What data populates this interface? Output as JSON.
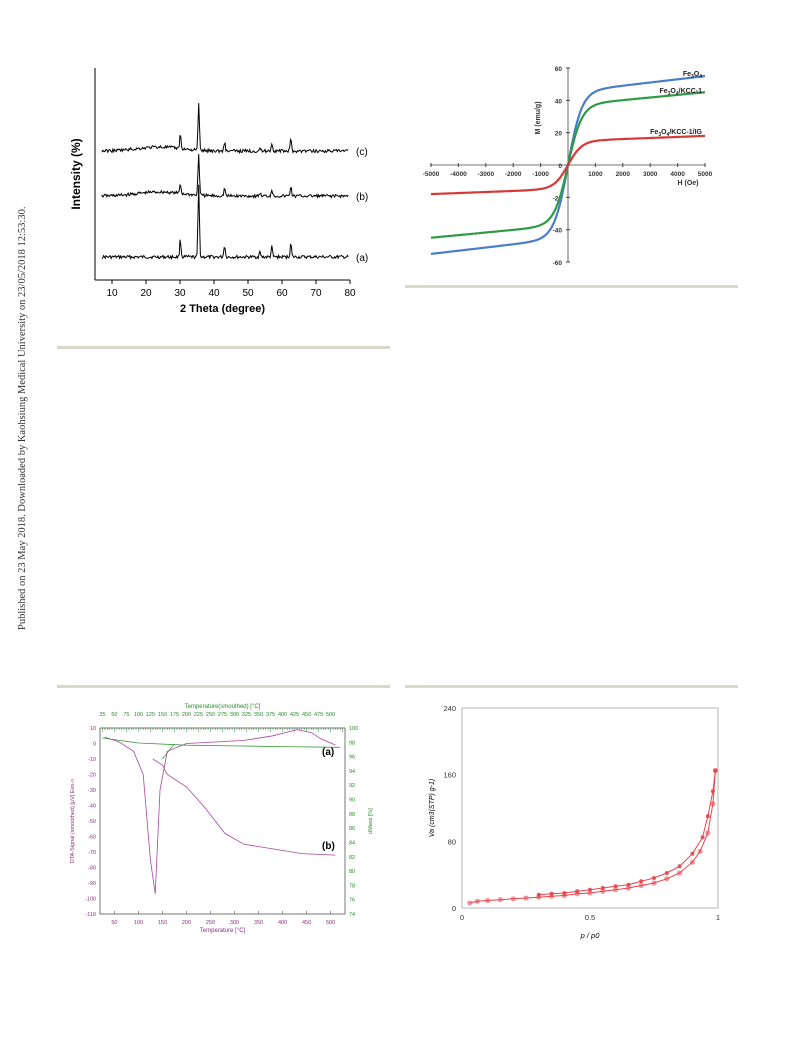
{
  "page": {
    "side_note": "Published on 23 May 2018. Downloaded by Kaohsiung Medical University on 23/05/2018 12:53:30."
  },
  "chart_data": [
    {
      "type": "line",
      "id": "xrd",
      "xlabel": "2 Theta (degree)",
      "ylabel": "Intensity (%)",
      "xlim": [
        5,
        80
      ],
      "x_ticks": [
        10,
        20,
        30,
        40,
        50,
        60,
        70,
        80
      ],
      "peaks": [
        30.1,
        35.5,
        43.1,
        53.5,
        57.0,
        62.6
      ],
      "series": [
        {
          "name": "(a)",
          "peak_heights": [
            18,
            72,
            12,
            5,
            10,
            14
          ]
        },
        {
          "name": "(b)",
          "peak_heights": [
            10,
            42,
            8,
            3,
            7,
            10
          ]
        },
        {
          "name": "(c)",
          "peak_heights": [
            14,
            46,
            9,
            3,
            8,
            12
          ]
        }
      ],
      "color": "#000000"
    },
    {
      "type": "line",
      "id": "vsm",
      "xlabel": "H (Oe)",
      "ylabel": "M (emu/g)",
      "xlim": [
        -5000,
        5000
      ],
      "ylim": [
        -60,
        60
      ],
      "x_ticks": [
        -5000,
        -4000,
        -3000,
        -2000,
        -1000,
        0,
        1000,
        2000,
        3000,
        4000,
        5000
      ],
      "x_tick_labels": [
        "-5000",
        "-4000",
        "-3000",
        "-2000",
        "-1000",
        "0",
        "1000",
        "2000",
        "3000",
        "4000",
        "5000"
      ],
      "y_ticks": [
        -60,
        -40,
        -20,
        0,
        20,
        40,
        60
      ],
      "series": [
        {
          "name": "Fe3O4",
          "saturation": 55,
          "color": "#4a7dc9"
        },
        {
          "name": "Fe3O4/KCC-1",
          "saturation": 45,
          "color": "#2f9a45"
        },
        {
          "name": "Fe3O4/KCC-1/IG",
          "saturation": 18,
          "color": "#d43a3a"
        }
      ]
    },
    {
      "type": "line",
      "id": "dta-tga",
      "top_axis_label": "Temperature(smoothed) [°C]",
      "top_ticks": [
        25,
        50,
        75,
        100,
        125,
        150,
        175,
        200,
        225,
        250,
        275,
        300,
        325,
        350,
        375,
        400,
        425,
        450,
        475,
        500
      ],
      "xlabel": "Temperature [°C]",
      "x_ticks": [
        50,
        100,
        150,
        200,
        250,
        300,
        350,
        400,
        450,
        500
      ],
      "ylabel_left": "DTA-Signal (smoothed) [µV] Exo->",
      "left_ticks": [
        10,
        0,
        -10,
        -20,
        -30,
        -40,
        -50,
        -60,
        -70,
        -80,
        -90,
        -100,
        -110
      ],
      "ylabel_right": "dMass [%]",
      "right_ticks": [
        100,
        98,
        96,
        94,
        92,
        90,
        88,
        86,
        84,
        82,
        80,
        78,
        76,
        74
      ],
      "labels": [
        "(a)",
        "(b)"
      ],
      "colors": {
        "dta": "#a8479c",
        "tga": "#3a9a3a",
        "axis_green": "#2a8a2a",
        "axis_purple": "#8b2f86"
      },
      "series": [
        {
          "name": "(a)",
          "type": "DTA",
          "x": [
            30,
            60,
            90,
            110,
            125,
            135,
            145,
            160,
            200,
            260,
            320,
            380,
            430,
            460,
            480,
            510
          ],
          "y": [
            4,
            1,
            -5,
            -20,
            -75,
            -97,
            -30,
            -5,
            0,
            1,
            2,
            5,
            9,
            7,
            3,
            -1
          ]
        },
        {
          "name": "(b)",
          "type": "DTA",
          "x": [
            130,
            150,
            160,
            200,
            240,
            280,
            320,
            380,
            440,
            510
          ],
          "y": [
            -10,
            -14,
            -20,
            -28,
            -42,
            -58,
            -65,
            -68,
            -71,
            -72
          ]
        },
        {
          "name": "(a)",
          "type": "TG",
          "x": [
            25,
            100,
            200,
            300,
            400,
            520
          ],
          "y": [
            98.6,
            97.9,
            97.6,
            97.5,
            97.4,
            97.3
          ]
        }
      ]
    },
    {
      "type": "scatter",
      "id": "bet",
      "xlabel": "p / p0",
      "ylabel": "Va (cm3(STP) g-1)",
      "xlim": [
        0,
        1
      ],
      "ylim": [
        0,
        240
      ],
      "x_ticks": [
        0,
        0.5,
        1
      ],
      "y_ticks": [
        0,
        80,
        160,
        240
      ],
      "color": "#e8434a",
      "series": [
        {
          "name": "adsorption",
          "x": [
            0.03,
            0.06,
            0.1,
            0.15,
            0.2,
            0.25,
            0.3,
            0.35,
            0.4,
            0.45,
            0.5,
            0.55,
            0.6,
            0.65,
            0.7,
            0.75,
            0.8,
            0.85,
            0.9,
            0.93,
            0.96,
            0.98,
            0.99
          ],
          "y": [
            6,
            8,
            9,
            10,
            11,
            12,
            13,
            14,
            15,
            17,
            18,
            20,
            22,
            24,
            27,
            30,
            35,
            42,
            55,
            68,
            90,
            125,
            165
          ]
        },
        {
          "name": "desorption",
          "x": [
            0.99,
            0.98,
            0.96,
            0.94,
            0.9,
            0.85,
            0.8,
            0.75,
            0.7,
            0.65,
            0.6,
            0.55,
            0.5,
            0.45,
            0.4,
            0.35,
            0.3
          ],
          "y": [
            165,
            140,
            110,
            85,
            65,
            50,
            42,
            36,
            32,
            28,
            26,
            24,
            22,
            20,
            18,
            17,
            16
          ]
        }
      ]
    }
  ]
}
